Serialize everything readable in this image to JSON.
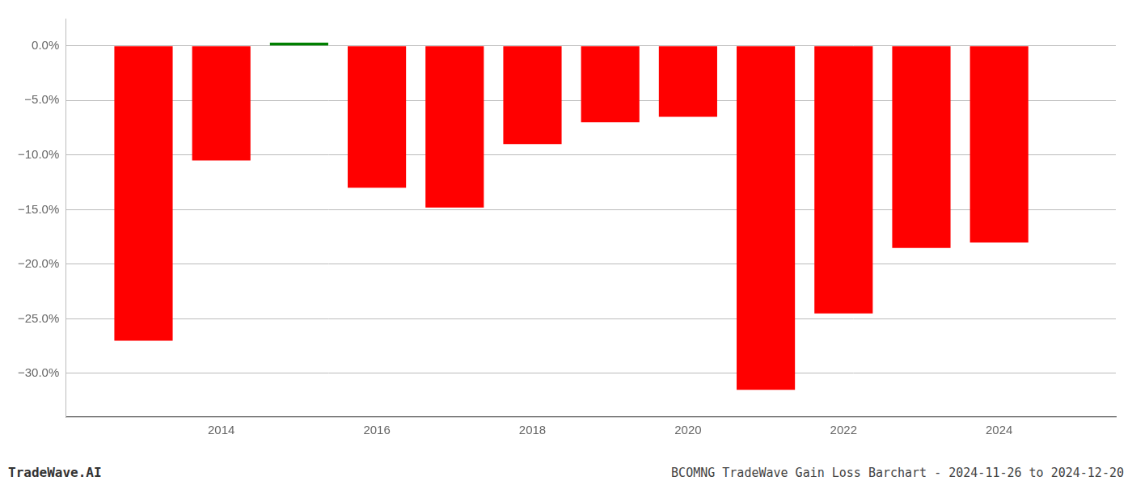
{
  "chart_data": {
    "type": "bar",
    "title": "BCOMNG TradeWave Gain Loss Barchart - 2024-11-26 to 2024-12-20",
    "annotations": [
      {
        "text": "TradeWave.AI"
      }
    ],
    "x": [
      2013,
      2014,
      2015,
      2016,
      2017,
      2018,
      2019,
      2020,
      2021,
      2022,
      2023,
      2024
    ],
    "values": [
      -27.0,
      -10.5,
      0.3,
      -13.0,
      -14.8,
      -9.0,
      -7.0,
      -6.5,
      -31.5,
      -24.5,
      -18.5,
      -18.0
    ],
    "colors": [
      "#ff0000",
      "#ff0000",
      "#008000",
      "#ff0000",
      "#ff0000",
      "#ff0000",
      "#ff0000",
      "#ff0000",
      "#ff0000",
      "#ff0000",
      "#ff0000",
      "#ff0000"
    ],
    "xlim": [
      2012.0,
      2025.5
    ],
    "xticks": [
      2014,
      2016,
      2018,
      2020,
      2022,
      2024
    ],
    "ylim": [
      -34,
      2.5
    ],
    "yticks": [
      {
        "value": 0.0,
        "label": "0.0%"
      },
      {
        "value": -5.0,
        "label": "−5.0%"
      },
      {
        "value": -10.0,
        "label": "−10.0%"
      },
      {
        "value": -15.0,
        "label": "−15.0%"
      },
      {
        "value": -20.0,
        "label": "−20.0%"
      },
      {
        "value": -25.0,
        "label": "−25.0%"
      },
      {
        "value": -30.0,
        "label": "−30.0%"
      }
    ],
    "grid": true
  }
}
